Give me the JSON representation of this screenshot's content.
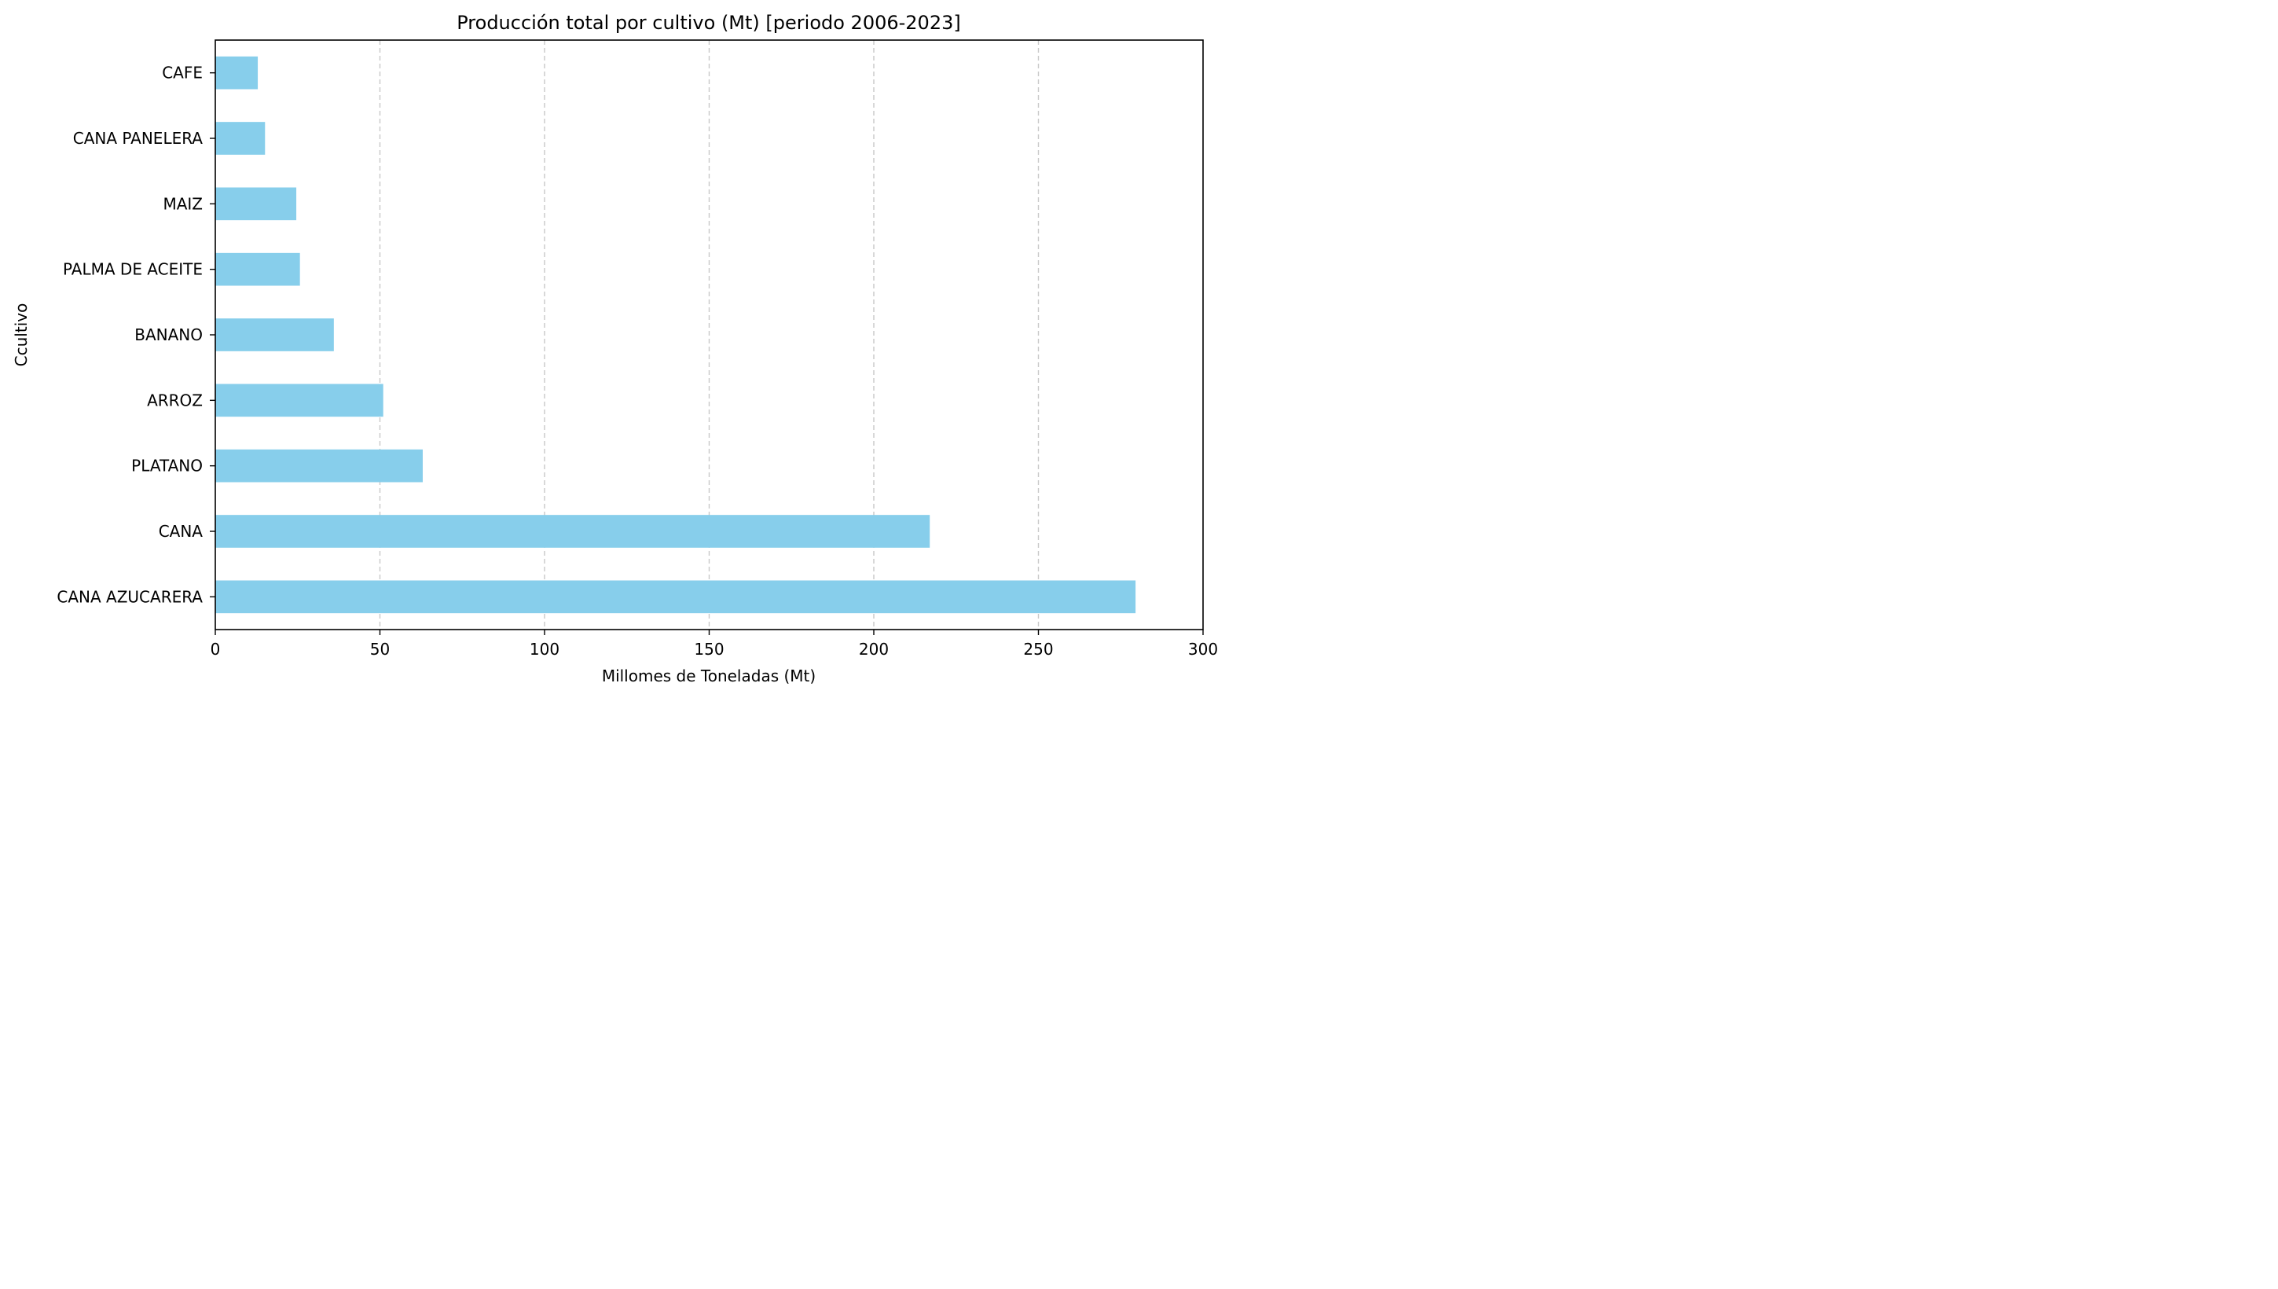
{
  "chart_data": {
    "type": "bar",
    "orientation": "horizontal",
    "title": "Producción total por cultivo (Mt) [periodo 2006-2023]",
    "xlabel": "Millomes de Toneladas (Mt)",
    "ylabel": "Ccultivo",
    "categories": [
      "CANA AZUCARERA",
      "CANA",
      "PLATANO",
      "ARROZ",
      "BANANO",
      "PALMA DE ACEITE",
      "MAIZ",
      "CANA PANELERA",
      "CAFE"
    ],
    "values": [
      279.5,
      217,
      63,
      51,
      36,
      25.7,
      24.6,
      15.1,
      12.9
    ],
    "xlim": [
      0,
      300
    ],
    "xticks": [
      0,
      50,
      100,
      150,
      200,
      250,
      300
    ],
    "grid": "vertical dashed",
    "colors": {
      "bar": "#87ceeb",
      "grid": "#c8c8c8",
      "axis": "#000000"
    }
  }
}
